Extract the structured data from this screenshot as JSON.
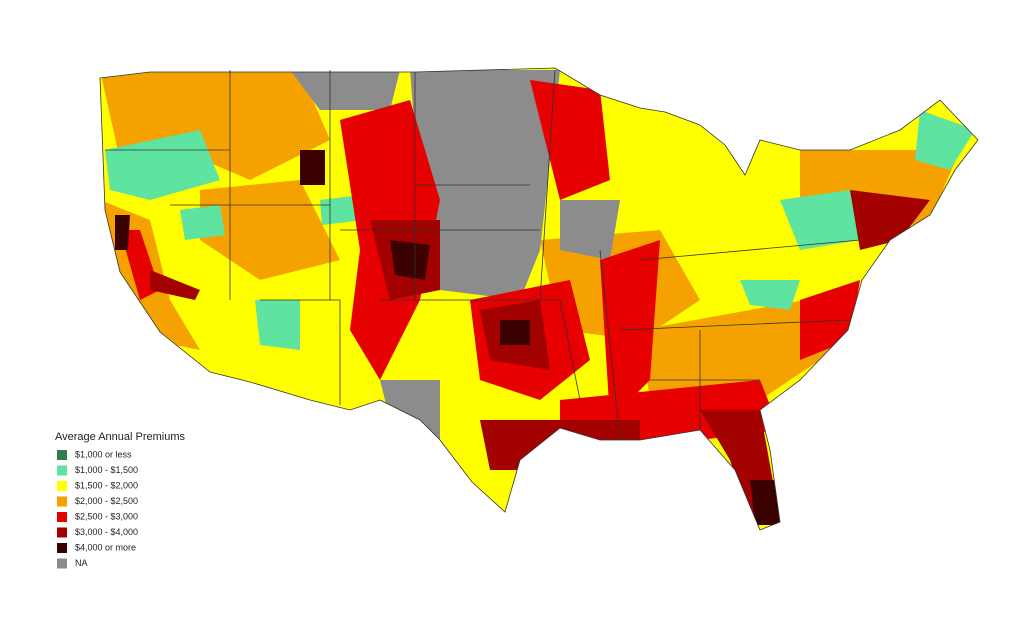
{
  "legend": {
    "title": "Average Annual Premiums",
    "items": [
      {
        "label": "$1,000 or less",
        "color": "#2e7d4f"
      },
      {
        "label": "$1,000 - $1,500",
        "color": "#5fe3a1"
      },
      {
        "label": "$1,500 - $2,000",
        "color": "#ffff00"
      },
      {
        "label": "$2,000 - $2,500",
        "color": "#f5a200"
      },
      {
        "label": "$2,500 - $3,000",
        "color": "#e60000"
      },
      {
        "label": "$3,000 - $4,000",
        "color": "#a30000"
      },
      {
        "label": "$4,000 or more",
        "color": "#3b0000"
      },
      {
        "label": "NA",
        "color": "#8c8c8c"
      }
    ]
  }
}
